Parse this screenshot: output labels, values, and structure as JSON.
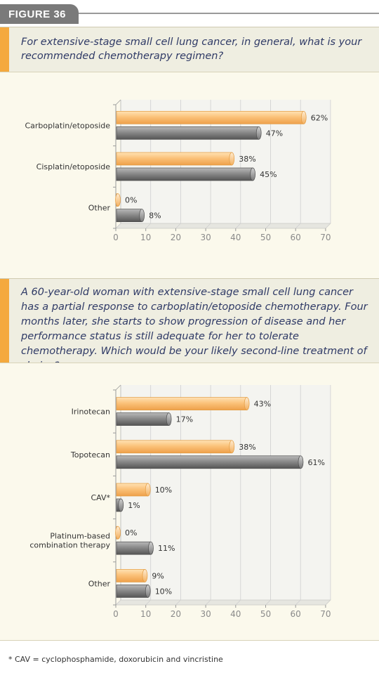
{
  "figure_label": "FIGURE 36",
  "question1": "For extensive-stage small cell lung cancer, in general, what is your recommended chemotherapy regimen?",
  "question2": "A 60-year-old woman with extensive-stage small cell lung cancer has a partial response to carboplatin/etoposide chemotherapy. Four months later, she starts to show progression of disease and her performance status is still adequate for her to tolerate chemotherapy. Which would be your likely second-line treatment of choice?",
  "footnote": "* CAV = cyclophosphamide, doxorubicin and vincristine",
  "colors": {
    "orange": "#f7b85e",
    "gray": "#6f6f6f",
    "accent": "#f4a93e",
    "question_text": "#2f3a66"
  },
  "chart_data": [
    {
      "type": "bar",
      "orientation": "horizontal",
      "categories": [
        "Carboplatin/etoposide",
        "Cisplatin/etoposide",
        "Other"
      ],
      "series": [
        {
          "values": [
            62,
            38,
            0
          ],
          "labels": [
            "62%",
            "38%",
            "0%"
          ],
          "color": "orange"
        },
        {
          "values": [
            47,
            45,
            8
          ],
          "labels": [
            "47%",
            "45%",
            "8%"
          ],
          "color": "gray"
        }
      ],
      "xlim": [
        0,
        70
      ],
      "ticks": [
        "0",
        "10",
        "20",
        "30",
        "40",
        "50",
        "60",
        "70"
      ],
      "grid": true
    },
    {
      "type": "bar",
      "orientation": "horizontal",
      "categories": [
        "Irinotecan",
        "Topotecan",
        "CAV*",
        "Platinum-based combination therapy",
        "Other"
      ],
      "category_lines": [
        [
          "Irinotecan"
        ],
        [
          "Topotecan"
        ],
        [
          "CAV*"
        ],
        [
          "Platinum-based",
          "combination therapy"
        ],
        [
          "Other"
        ]
      ],
      "series": [
        {
          "values": [
            43,
            38,
            10,
            0,
            9
          ],
          "labels": [
            "43%",
            "38%",
            "10%",
            "0%",
            "9%"
          ],
          "color": "orange"
        },
        {
          "values": [
            17,
            61,
            1,
            11,
            10
          ],
          "labels": [
            "17%",
            "61%",
            "1%",
            "11%",
            "10%"
          ],
          "color": "gray"
        }
      ],
      "xlim": [
        0,
        70
      ],
      "ticks": [
        "0",
        "10",
        "20",
        "30",
        "40",
        "50",
        "60",
        "70"
      ],
      "grid": true
    }
  ]
}
